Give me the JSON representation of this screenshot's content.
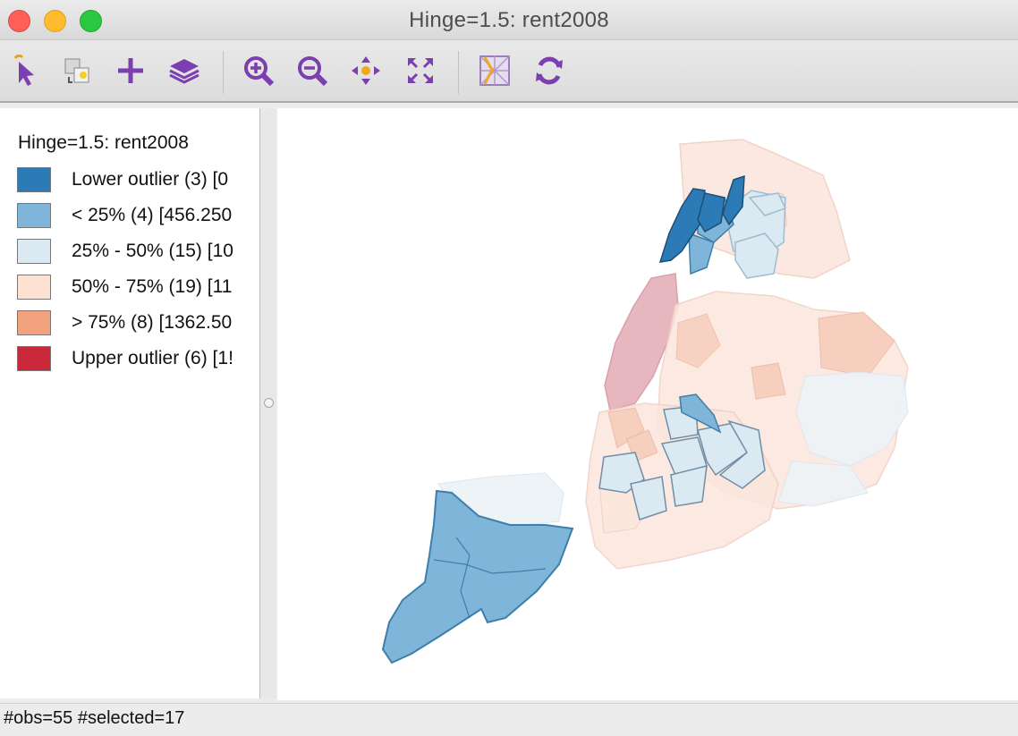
{
  "window": {
    "title": "Hinge=1.5: rent2008"
  },
  "toolbar": {
    "tools": [
      {
        "name": "select-icon"
      },
      {
        "name": "copy-image-icon"
      },
      {
        "name": "add-icon"
      },
      {
        "name": "layers-icon"
      },
      {
        "name": "zoom-in-icon"
      },
      {
        "name": "zoom-out-icon"
      },
      {
        "name": "pan-icon"
      },
      {
        "name": "full-extent-icon"
      },
      {
        "name": "basemap-icon"
      },
      {
        "name": "refresh-icon"
      }
    ]
  },
  "legend": {
    "title": "Hinge=1.5: rent2008",
    "items": [
      {
        "label": "Lower outlier (3)  [0",
        "color": "#2c7bb6"
      },
      {
        "label": "< 25% (4)  [456.250",
        "color": "#7fb5d8"
      },
      {
        "label": "25% - 50% (15)  [10",
        "color": "#dbe9f2"
      },
      {
        "label": "50% - 75% (19)  [11",
        "color": "#fde1d3"
      },
      {
        "label": "> 75% (8)  [1362.50",
        "color": "#f3a27e"
      },
      {
        "label": "Upper outlier (6)  [1!",
        "color": "#c9283a"
      }
    ]
  },
  "status": {
    "text": "#obs=55 #selected=17"
  }
}
